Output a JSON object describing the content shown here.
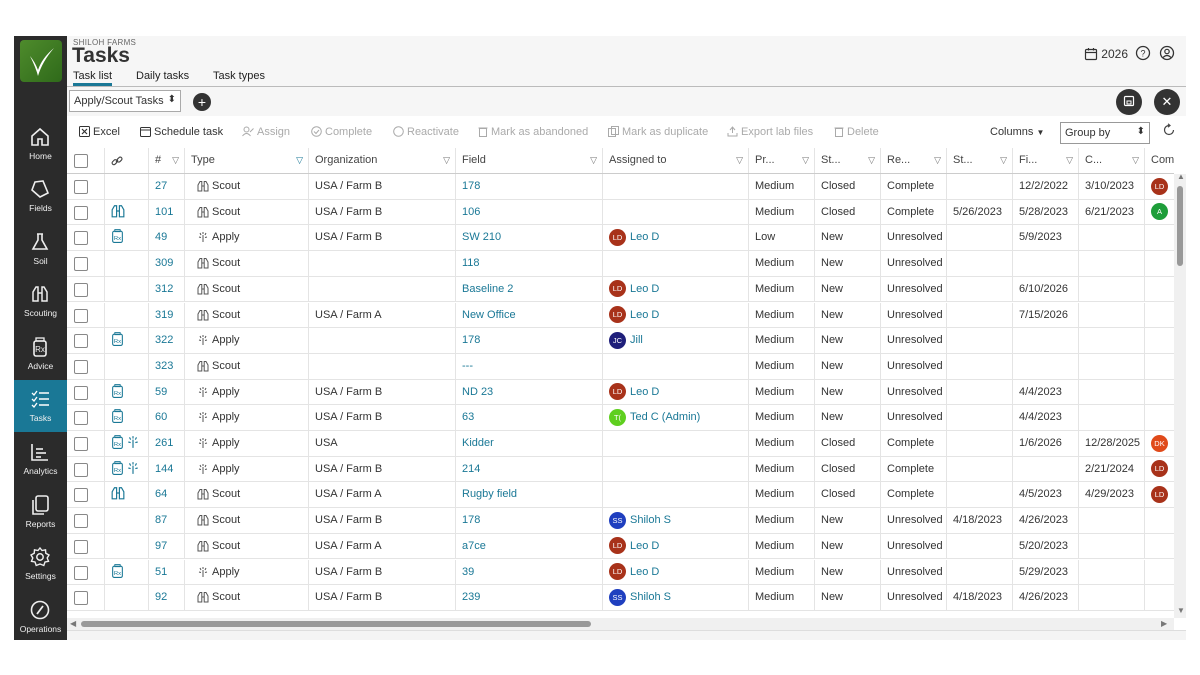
{
  "sidebar": {
    "items": [
      {
        "label": "Home",
        "icon": "home-icon"
      },
      {
        "label": "Fields",
        "icon": "fields-icon"
      },
      {
        "label": "Soil",
        "icon": "soil-icon"
      },
      {
        "label": "Scouting",
        "icon": "scouting-icon"
      },
      {
        "label": "Advice",
        "icon": "advice-icon"
      },
      {
        "label": "Tasks",
        "icon": "tasks-icon"
      },
      {
        "label": "Analytics",
        "icon": "analytics-icon"
      },
      {
        "label": "Reports",
        "icon": "reports-icon"
      },
      {
        "label": "Settings",
        "icon": "settings-icon"
      },
      {
        "label": "Operations",
        "icon": "operations-icon"
      }
    ],
    "active": "Tasks"
  },
  "header": {
    "company": "SHILOH FARMS",
    "title": "Tasks",
    "tabs": [
      "Task list",
      "Daily tasks",
      "Task types"
    ],
    "year": "2026"
  },
  "subbar": {
    "view": "Apply/Scout Tasks"
  },
  "toolbar": {
    "excel": "Excel",
    "schedule": "Schedule task",
    "assign": "Assign",
    "complete": "Complete",
    "reactivate": "Reactivate",
    "abandon": "Mark as abandoned",
    "duplicate": "Mark as duplicate",
    "export": "Export lab files",
    "delete": "Delete",
    "columns": "Columns",
    "groupby": "Group by"
  },
  "table": {
    "headers": {
      "num": "#",
      "type": "Type",
      "org": "Organization",
      "field": "Field",
      "assigned": "Assigned to",
      "priority": "Pr...",
      "status": "St...",
      "result": "Re...",
      "start": "St...",
      "finish": "Fi...",
      "created": "C...",
      "completed": "Comp"
    },
    "rows": [
      {
        "icons": "",
        "num": "27",
        "type": "Scout",
        "org": "USA / Farm B",
        "field": "178",
        "assigned": "",
        "initials": "",
        "av": "",
        "priority": "Medium",
        "status": "Closed",
        "result": "Complete",
        "start": "",
        "finish": "12/2/2022",
        "created": "3/10/2023",
        "cinit": "LD",
        "ccolor": "#a8321a"
      },
      {
        "icons": "scout",
        "num": "101",
        "type": "Scout",
        "org": "USA / Farm B",
        "field": "106",
        "assigned": "",
        "initials": "",
        "av": "",
        "priority": "Medium",
        "status": "Closed",
        "result": "Complete",
        "start": "5/26/2023",
        "finish": "5/28/2023",
        "created": "6/21/2023",
        "cinit": "A",
        "ccolor": "#1e9e3a"
      },
      {
        "icons": "rx",
        "num": "49",
        "type": "Apply",
        "org": "USA / Farm B",
        "field": "SW 210",
        "assigned": "Leo D",
        "initials": "LD",
        "av": "#a8321a",
        "priority": "Low",
        "status": "New",
        "result": "Unresolved",
        "start": "",
        "finish": "5/9/2023",
        "created": "",
        "cinit": "",
        "ccolor": ""
      },
      {
        "icons": "",
        "num": "309",
        "type": "Scout",
        "org": "",
        "field": "118",
        "assigned": "",
        "initials": "",
        "av": "",
        "priority": "Medium",
        "status": "New",
        "result": "Unresolved",
        "start": "",
        "finish": "",
        "created": "",
        "cinit": "",
        "ccolor": ""
      },
      {
        "icons": "",
        "num": "312",
        "type": "Scout",
        "org": "",
        "field": "Baseline 2",
        "assigned": "Leo D",
        "initials": "LD",
        "av": "#a8321a",
        "priority": "Medium",
        "status": "New",
        "result": "Unresolved",
        "start": "",
        "finish": "6/10/2026",
        "created": "",
        "cinit": "",
        "ccolor": ""
      },
      {
        "icons": "",
        "num": "319",
        "type": "Scout",
        "org": "USA / Farm A",
        "field": "New Office",
        "assigned": "Leo D",
        "initials": "LD",
        "av": "#a8321a",
        "priority": "Medium",
        "status": "New",
        "result": "Unresolved",
        "start": "",
        "finish": "7/15/2026",
        "created": "",
        "cinit": "",
        "ccolor": ""
      },
      {
        "icons": "rx",
        "num": "322",
        "type": "Apply",
        "org": "",
        "field": "178",
        "assigned": "Jill",
        "initials": "JC",
        "av": "#1f1f7a",
        "priority": "Medium",
        "status": "New",
        "result": "Unresolved",
        "start": "",
        "finish": "",
        "created": "",
        "cinit": "",
        "ccolor": ""
      },
      {
        "icons": "",
        "num": "323",
        "type": "Scout",
        "org": "",
        "field": "---",
        "assigned": "",
        "initials": "",
        "av": "",
        "priority": "Medium",
        "status": "New",
        "result": "Unresolved",
        "start": "",
        "finish": "",
        "created": "",
        "cinit": "",
        "ccolor": ""
      },
      {
        "icons": "rx",
        "num": "59",
        "type": "Apply",
        "org": "USA / Farm B",
        "field": "ND 23",
        "assigned": "Leo D",
        "initials": "LD",
        "av": "#a8321a",
        "priority": "Medium",
        "status": "New",
        "result": "Unresolved",
        "start": "",
        "finish": "4/4/2023",
        "created": "",
        "cinit": "",
        "ccolor": ""
      },
      {
        "icons": "rx",
        "num": "60",
        "type": "Apply",
        "org": "USA / Farm B",
        "field": "63",
        "assigned": "Ted C (Admin)",
        "initials": "T(",
        "av": "#5fcf1f",
        "priority": "Medium",
        "status": "New",
        "result": "Unresolved",
        "start": "",
        "finish": "4/4/2023",
        "created": "",
        "cinit": "",
        "ccolor": ""
      },
      {
        "icons": "rx-apply",
        "num": "261",
        "type": "Apply",
        "org": "USA",
        "field": "Kidder",
        "assigned": "",
        "initials": "",
        "av": "",
        "priority": "Medium",
        "status": "Closed",
        "result": "Complete",
        "start": "",
        "finish": "1/6/2026",
        "created": "12/28/2025",
        "cinit": "DK",
        "ccolor": "#e04a1a"
      },
      {
        "icons": "rx-apply",
        "num": "144",
        "type": "Apply",
        "org": "USA / Farm B",
        "field": "214",
        "assigned": "",
        "initials": "",
        "av": "",
        "priority": "Medium",
        "status": "Closed",
        "result": "Complete",
        "start": "",
        "finish": "",
        "created": "2/21/2024",
        "cinit": "LD",
        "ccolor": "#a8321a"
      },
      {
        "icons": "scout",
        "num": "64",
        "type": "Scout",
        "org": "USA / Farm A",
        "field": "Rugby field",
        "assigned": "",
        "initials": "",
        "av": "",
        "priority": "Medium",
        "status": "Closed",
        "result": "Complete",
        "start": "",
        "finish": "4/5/2023",
        "created": "4/29/2023",
        "cinit": "LD",
        "ccolor": "#a8321a"
      },
      {
        "icons": "",
        "num": "87",
        "type": "Scout",
        "org": "USA / Farm B",
        "field": "178",
        "assigned": "Shiloh S",
        "initials": "SS",
        "av": "#1f3fbf",
        "priority": "Medium",
        "status": "New",
        "result": "Unresolved",
        "start": "4/18/2023",
        "finish": "4/26/2023",
        "created": "",
        "cinit": "",
        "ccolor": ""
      },
      {
        "icons": "",
        "num": "97",
        "type": "Scout",
        "org": "USA / Farm A",
        "field": "a7ce",
        "assigned": "Leo D",
        "initials": "LD",
        "av": "#a8321a",
        "priority": "Medium",
        "status": "New",
        "result": "Unresolved",
        "start": "",
        "finish": "5/20/2023",
        "created": "",
        "cinit": "",
        "ccolor": ""
      },
      {
        "icons": "rx",
        "num": "51",
        "type": "Apply",
        "org": "USA / Farm B",
        "field": "39",
        "assigned": "Leo D",
        "initials": "LD",
        "av": "#a8321a",
        "priority": "Medium",
        "status": "New",
        "result": "Unresolved",
        "start": "",
        "finish": "5/29/2023",
        "created": "",
        "cinit": "",
        "ccolor": ""
      },
      {
        "icons": "",
        "num": "92",
        "type": "Scout",
        "org": "USA / Farm B",
        "field": "239",
        "assigned": "Shiloh S",
        "initials": "SS",
        "av": "#1f3fbf",
        "priority": "Medium",
        "status": "New",
        "result": "Unresolved",
        "start": "4/18/2023",
        "finish": "4/26/2023",
        "created": "",
        "cinit": "",
        "ccolor": ""
      }
    ]
  }
}
